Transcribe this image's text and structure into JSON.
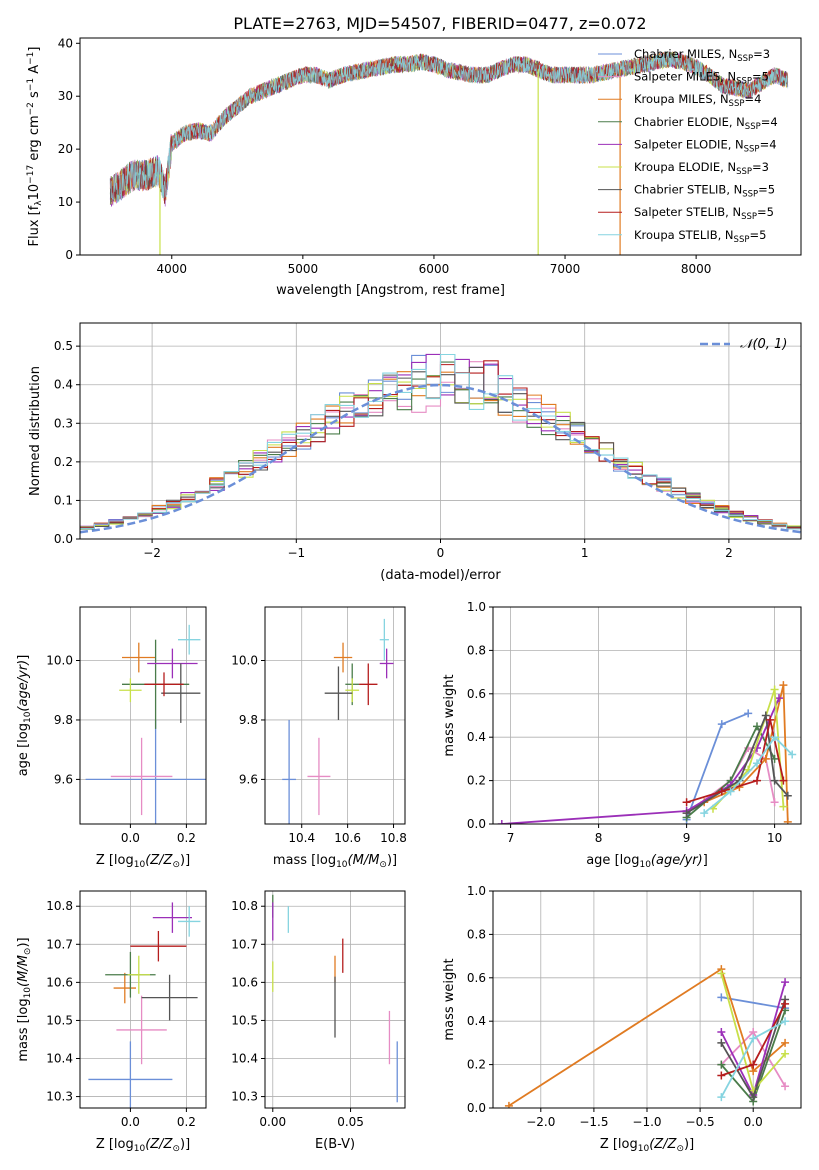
{
  "figure_title": "PLATE=2763, MJD=54507, FIBERID=0477, z=0.072",
  "series_styles": [
    {
      "name": "Chabrier MILES, N$_{SSP}$=3",
      "label_main": "Chabrier MILES, N",
      "label_sub": "SSP",
      "label_tail": "=3",
      "color": "#6b8fd8"
    },
    {
      "name": "Salpeter MILES, N$_{SSP}$=5",
      "label_main": "Salpeter MILES, N",
      "label_sub": "SSP",
      "label_tail": "=5",
      "color": "#e68cc4"
    },
    {
      "name": "Kroupa MILES, N$_{SSP}$=4",
      "label_main": "Kroupa MILES, N",
      "label_sub": "SSP",
      "label_tail": "=4",
      "color": "#e07b22"
    },
    {
      "name": "Chabrier ELODIE, N$_{SSP}$=4",
      "label_main": "Chabrier ELODIE, N",
      "label_sub": "SSP",
      "label_tail": "=4",
      "color": "#4a7c4a"
    },
    {
      "name": "Salpeter ELODIE, N$_{SSP}$=4",
      "label_main": "Salpeter ELODIE, N",
      "label_sub": "SSP",
      "label_tail": "=4",
      "color": "#9b2fb8"
    },
    {
      "name": "Kroupa ELODIE, N$_{SSP}$=3",
      "label_main": "Kroupa ELODIE, N",
      "label_sub": "SSP",
      "label_tail": "=3",
      "color": "#c8e04a"
    },
    {
      "name": "Chabrier STELIB, N$_{SSP}$=5",
      "label_main": "Chabrier STELIB, N",
      "label_sub": "SSP",
      "label_tail": "=5",
      "color": "#555555"
    },
    {
      "name": "Salpeter STELIB, N$_{SSP}$=5",
      "label_main": "Salpeter STELIB, N",
      "label_sub": "SSP",
      "label_tail": "=5",
      "color": "#b51d1d"
    },
    {
      "name": "Kroupa STELIB, N$_{SSP}$=5",
      "label_main": "Kroupa STELIB, N",
      "label_sub": "SSP",
      "label_tail": "=5",
      "color": "#86d4e0"
    }
  ],
  "chart_data": [
    {
      "id": "spectrum",
      "type": "line",
      "xlabel": "wavelength [Angstrom, rest frame]",
      "ylabel": "Flux [f_λ10^-17 erg cm^-2 s^-1 A^-1]",
      "ylabel_parts": [
        "Flux [f",
        "λ",
        "10",
        "−17",
        " erg cm",
        "−2",
        " s",
        "−1",
        " A",
        "−1",
        "]"
      ],
      "xlim": [
        3300,
        8800
      ],
      "ylim": [
        0,
        41
      ],
      "xticks": [
        4000,
        5000,
        6000,
        7000,
        8000
      ],
      "yticks": [
        0,
        10,
        20,
        30,
        40
      ],
      "legend_position": "upper right",
      "continuum_x": [
        3530,
        3600,
        3700,
        3800,
        3900,
        3950,
        4000,
        4100,
        4200,
        4300,
        4400,
        4500,
        4600,
        4700,
        4800,
        4900,
        5000,
        5100,
        5200,
        5300,
        5400,
        5500,
        5600,
        5700,
        5800,
        5900,
        6000,
        6100,
        6200,
        6300,
        6400,
        6500,
        6600,
        6700,
        6800,
        6900,
        7000,
        7100,
        7200,
        7300,
        7400,
        7500,
        7600,
        7700,
        7800,
        7900,
        8000,
        8100,
        8200,
        8300,
        8400,
        8500,
        8600,
        8700
      ],
      "continuum_y": [
        12,
        13,
        15,
        15,
        16,
        12,
        21,
        23,
        23.5,
        23,
        26,
        28,
        30,
        31,
        32,
        33,
        34,
        34,
        33,
        34,
        34.5,
        35,
        35.5,
        36,
        36,
        36.5,
        36,
        35,
        34.5,
        34,
        34,
        35,
        36,
        36,
        35,
        34,
        34,
        34,
        34,
        34.5,
        35,
        35.5,
        36,
        36.5,
        37,
        36.5,
        35.5,
        34,
        32,
        31.5,
        31,
        32.5,
        34,
        33
      ],
      "dropouts": [
        {
          "series": "Kroupa ELODIE, N$_{SSP}$=3",
          "x": 3910
        },
        {
          "series": "Kroupa ELODIE, N$_{SSP}$=3",
          "x": 6795
        },
        {
          "series": "Kroupa MILES, N$_{SSP}$=4",
          "x": 7420
        }
      ]
    },
    {
      "id": "residuals",
      "type": "step",
      "xlabel": "(data-model)/error",
      "ylabel": "Normed distribution",
      "xlim": [
        -2.5,
        2.5
      ],
      "ylim": [
        0,
        0.56
      ],
      "xticks": [
        -2,
        -1,
        0,
        1,
        2
      ],
      "xtick_labels": [
        "−2",
        "−1",
        "0",
        "1",
        "2"
      ],
      "yticks": [
        0,
        0.1,
        0.2,
        0.3,
        0.4,
        0.5
      ],
      "ytick_labels": [
        "0.0",
        "0.1",
        "0.2",
        "0.3",
        "0.4",
        "0.5"
      ],
      "grid": true,
      "reference_curve": {
        "name": "N(0,1)",
        "label": "𝒩(0, 1)",
        "mu": 0,
        "sigma": 1,
        "color": "#6b8fd8"
      },
      "bin_width": 0.1,
      "bins_start": -2.5,
      "jitter_seeds": [
        1,
        2,
        3,
        4,
        5,
        6,
        7,
        8,
        9
      ]
    },
    {
      "id": "age_vs_Z",
      "type": "errorbar",
      "xlabel": "Z [log10(Z/Z☉)]",
      "ylabel": "age [log10(age/yr)]",
      "xlim": [
        -0.18,
        0.27
      ],
      "ylim": [
        9.45,
        10.18
      ],
      "xticks": [
        0.0,
        0.2
      ],
      "xtick_labels": [
        "0.0",
        "0.2"
      ],
      "yticks": [
        9.6,
        9.8,
        10.0
      ],
      "ytick_labels": [
        "9.6",
        "9.8",
        "10.0"
      ],
      "points": [
        {
          "series": 0,
          "x": 0.09,
          "y": 9.6,
          "xerr": 0.25,
          "yerr": 0.2
        },
        {
          "series": 1,
          "x": 0.04,
          "y": 9.61,
          "xerr": 0.11,
          "yerr": 0.13
        },
        {
          "series": 2,
          "x": 0.03,
          "y": 10.01,
          "xerr": 0.06,
          "yerr": 0.05
        },
        {
          "series": 3,
          "x": 0.09,
          "y": 9.92,
          "xerr": 0.12,
          "yerr": 0.15
        },
        {
          "series": 4,
          "x": 0.15,
          "y": 9.99,
          "xerr": 0.09,
          "yerr": 0.05
        },
        {
          "series": 5,
          "x": 0.0,
          "y": 9.9,
          "xerr": 0.04,
          "yerr": 0.04
        },
        {
          "series": 6,
          "x": 0.18,
          "y": 9.89,
          "xerr": 0.07,
          "yerr": 0.1
        },
        {
          "series": 7,
          "x": 0.12,
          "y": 9.92,
          "xerr": 0.07,
          "yerr": 0.04
        },
        {
          "series": 8,
          "x": 0.21,
          "y": 10.07,
          "xerr": 0.04,
          "yerr": 0.05
        }
      ]
    },
    {
      "id": "age_vs_mass",
      "type": "errorbar",
      "xlabel": "mass [log10(M/M☉)]",
      "ylabel": "",
      "xlim": [
        10.24,
        10.85
      ],
      "ylim": [
        9.45,
        10.18
      ],
      "xticks": [
        10.4,
        10.6,
        10.8
      ],
      "xtick_labels": [
        "10.4",
        "10.6",
        "10.8"
      ],
      "yticks": [
        9.6,
        9.8,
        10.0
      ],
      "ytick_labels": [
        "9.6",
        "9.8",
        "10.0"
      ],
      "points": [
        {
          "series": 0,
          "x": 10.345,
          "y": 9.6,
          "xerr": 0.03,
          "yerr": 0.2
        },
        {
          "series": 1,
          "x": 10.475,
          "y": 9.61,
          "xerr": 0.05,
          "yerr": 0.13
        },
        {
          "series": 2,
          "x": 10.58,
          "y": 10.01,
          "xerr": 0.04,
          "yerr": 0.05
        },
        {
          "series": 3,
          "x": 10.62,
          "y": 9.92,
          "xerr": 0.03,
          "yerr": 0.07
        },
        {
          "series": 4,
          "x": 10.77,
          "y": 9.99,
          "xerr": 0.03,
          "yerr": 0.05
        },
        {
          "series": 5,
          "x": 10.62,
          "y": 9.9,
          "xerr": 0.03,
          "yerr": 0.04
        },
        {
          "series": 6,
          "x": 10.56,
          "y": 9.89,
          "xerr": 0.06,
          "yerr": 0.09
        },
        {
          "series": 7,
          "x": 10.69,
          "y": 9.92,
          "xerr": 0.04,
          "yerr": 0.07
        },
        {
          "series": 8,
          "x": 10.76,
          "y": 10.07,
          "xerr": 0.02,
          "yerr": 0.07
        }
      ]
    },
    {
      "id": "weight_vs_age",
      "type": "line",
      "xlabel": "age [log10(age/yr)]",
      "ylabel": "mass weight",
      "xlim": [
        6.8,
        10.3
      ],
      "ylim": [
        0,
        1.0
      ],
      "xticks": [
        7,
        8,
        9,
        10
      ],
      "xtick_labels": [
        "7",
        "8",
        "9",
        "10"
      ],
      "yticks": [
        0,
        0.2,
        0.4,
        0.6,
        0.8,
        1.0
      ],
      "ytick_labels": [
        "0.0",
        "0.2",
        "0.4",
        "0.6",
        "0.8",
        "1.0"
      ],
      "grid": true,
      "lines": [
        {
          "series": 0,
          "x": [
            9.0,
            9.4,
            9.7
          ],
          "y": [
            0.02,
            0.46,
            0.51
          ]
        },
        {
          "series": 1,
          "x": [
            9.0,
            9.5,
            9.7,
            9.9,
            10.0
          ],
          "y": [
            0.05,
            0.2,
            0.35,
            0.3,
            0.1
          ]
        },
        {
          "series": 2,
          "x": [
            9.2,
            9.6,
            9.9,
            10.1,
            10.15
          ],
          "y": [
            0.1,
            0.17,
            0.3,
            0.64,
            0.01
          ]
        },
        {
          "series": 3,
          "x": [
            9.0,
            9.5,
            9.8,
            10.0
          ],
          "y": [
            0.03,
            0.2,
            0.45,
            0.3
          ]
        },
        {
          "series": 4,
          "x": [
            6.9,
            9.0,
            9.5,
            9.8,
            10.05
          ],
          "y": [
            0.0,
            0.06,
            0.18,
            0.35,
            0.58
          ]
        },
        {
          "series": 5,
          "x": [
            9.3,
            9.7,
            10.0,
            10.1
          ],
          "y": [
            0.07,
            0.25,
            0.62,
            0.08
          ]
        },
        {
          "series": 6,
          "x": [
            9.0,
            9.6,
            9.9,
            10.0,
            10.15
          ],
          "y": [
            0.05,
            0.2,
            0.5,
            0.2,
            0.13
          ]
        },
        {
          "series": 7,
          "x": [
            9.0,
            9.4,
            9.8,
            9.95,
            10.1
          ],
          "y": [
            0.1,
            0.15,
            0.2,
            0.48,
            0.2
          ]
        },
        {
          "series": 8,
          "x": [
            9.2,
            9.5,
            9.8,
            10.0,
            10.2
          ],
          "y": [
            0.05,
            0.15,
            0.28,
            0.4,
            0.32
          ]
        }
      ]
    },
    {
      "id": "mass_vs_Z",
      "type": "errorbar",
      "xlabel": "Z [log10(Z/Z☉)]",
      "ylabel": "mass [log10(M/M☉)]",
      "xlim": [
        -0.18,
        0.27
      ],
      "ylim": [
        10.27,
        10.84
      ],
      "xticks": [
        0.0,
        0.2
      ],
      "xtick_labels": [
        "0.0",
        "0.2"
      ],
      "yticks": [
        10.3,
        10.4,
        10.5,
        10.6,
        10.7,
        10.8
      ],
      "ytick_labels": [
        "10.3",
        "10.4",
        "10.5",
        "10.6",
        "10.7",
        "10.8"
      ],
      "points": [
        {
          "series": 0,
          "x": 0.0,
          "y": 10.345,
          "xerr": 0.15,
          "yerr": 0.1
        },
        {
          "series": 1,
          "x": 0.04,
          "y": 10.475,
          "xerr": 0.09,
          "yerr": 0.09
        },
        {
          "series": 2,
          "x": -0.02,
          "y": 10.585,
          "xerr": 0.04,
          "yerr": 0.04
        },
        {
          "series": 3,
          "x": 0.0,
          "y": 10.62,
          "xerr": 0.09,
          "yerr": 0.06
        },
        {
          "series": 4,
          "x": 0.15,
          "y": 10.77,
          "xerr": 0.07,
          "yerr": 0.04
        },
        {
          "series": 5,
          "x": 0.03,
          "y": 10.62,
          "xerr": 0.04,
          "yerr": 0.05
        },
        {
          "series": 6,
          "x": 0.14,
          "y": 10.56,
          "xerr": 0.1,
          "yerr": 0.06
        },
        {
          "series": 7,
          "x": 0.1,
          "y": 10.695,
          "xerr": 0.1,
          "yerr": 0.04
        },
        {
          "series": 8,
          "x": 0.21,
          "y": 10.76,
          "xerr": 0.04,
          "yerr": 0.04
        }
      ]
    },
    {
      "id": "mass_vs_ebv",
      "type": "errorbar",
      "xlabel": "E(B-V)",
      "ylabel": "",
      "xlim": [
        -0.005,
        0.085
      ],
      "ylim": [
        10.27,
        10.84
      ],
      "xticks": [
        0.0,
        0.05
      ],
      "xtick_labels": [
        "0.00",
        "0.05"
      ],
      "yticks": [
        10.3,
        10.4,
        10.5,
        10.6,
        10.7,
        10.8
      ],
      "ytick_labels": [
        "10.3",
        "10.4",
        "10.5",
        "10.6",
        "10.7",
        "10.8"
      ],
      "points": [
        {
          "series": 0,
          "x": 0.08,
          "y": 10.365,
          "xerr": 0,
          "yerr": 0.08
        },
        {
          "series": 1,
          "x": 0.075,
          "y": 10.455,
          "xerr": 0,
          "yerr": 0.07
        },
        {
          "series": 2,
          "x": 0.04,
          "y": 10.635,
          "xerr": 0,
          "yerr": 0.035
        },
        {
          "series": 3,
          "x": 0.0,
          "y": 10.8,
          "xerr": 0,
          "yerr": 0.03
        },
        {
          "series": 4,
          "x": 0.0,
          "y": 10.76,
          "xerr": 0,
          "yerr": 0.05
        },
        {
          "series": 5,
          "x": 0.0,
          "y": 10.615,
          "xerr": 0,
          "yerr": 0.04
        },
        {
          "series": 6,
          "x": 0.04,
          "y": 10.535,
          "xerr": 0,
          "yerr": 0.08
        },
        {
          "series": 7,
          "x": 0.045,
          "y": 10.67,
          "xerr": 0,
          "yerr": 0.045
        },
        {
          "series": 8,
          "x": 0.01,
          "y": 10.765,
          "xerr": 0,
          "yerr": 0.035
        }
      ]
    },
    {
      "id": "weight_vs_Z",
      "type": "line",
      "xlabel": "Z [log10(Z/Z☉)]",
      "ylabel": "mass weight",
      "xlim": [
        -2.45,
        0.45
      ],
      "ylim": [
        0,
        1.0
      ],
      "xticks": [
        -2.0,
        -1.5,
        -1.0,
        -0.5,
        0.0
      ],
      "xtick_labels": [
        "−2.0",
        "−1.5",
        "−1.0",
        "−0.5",
        "0.0"
      ],
      "yticks": [
        0,
        0.2,
        0.4,
        0.6,
        0.8,
        1.0
      ],
      "ytick_labels": [
        "0.0",
        "0.2",
        "0.4",
        "0.6",
        "0.8",
        "1.0"
      ],
      "grid": true,
      "lines": [
        {
          "series": 0,
          "x": [
            -0.3,
            0.3
          ],
          "y": [
            0.51,
            0.46
          ]
        },
        {
          "series": 1,
          "x": [
            -0.3,
            0.0,
            0.3
          ],
          "y": [
            0.2,
            0.35,
            0.1
          ]
        },
        {
          "series": 2,
          "x": [
            -2.3,
            -0.3,
            0.0,
            0.3
          ],
          "y": [
            0.01,
            0.64,
            0.17,
            0.3
          ]
        },
        {
          "series": 3,
          "x": [
            -0.3,
            0.0,
            0.3
          ],
          "y": [
            0.2,
            0.03,
            0.45
          ]
        },
        {
          "series": 4,
          "x": [
            -0.3,
            0.0,
            0.3
          ],
          "y": [
            0.35,
            0.06,
            0.58
          ]
        },
        {
          "series": 5,
          "x": [
            -0.3,
            0.0,
            0.3
          ],
          "y": [
            0.62,
            0.08,
            0.25
          ]
        },
        {
          "series": 6,
          "x": [
            -0.3,
            0.0,
            0.3
          ],
          "y": [
            0.3,
            0.05,
            0.5
          ]
        },
        {
          "series": 7,
          "x": [
            -0.3,
            0.0,
            0.3
          ],
          "y": [
            0.15,
            0.2,
            0.48
          ]
        },
        {
          "series": 8,
          "x": [
            -0.3,
            0.0,
            0.3
          ],
          "y": [
            0.05,
            0.32,
            0.4
          ]
        }
      ]
    }
  ]
}
